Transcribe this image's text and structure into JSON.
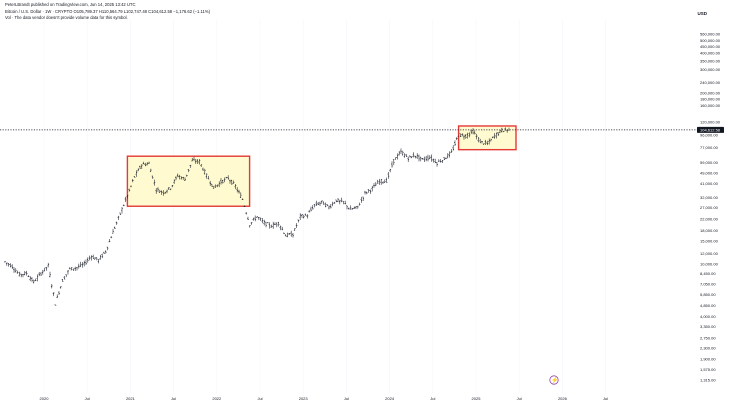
{
  "header": {
    "published_by": "PeterLBrandt published on TradingView.com, Jun 14, 2025 13:42 UTC",
    "symbol_line": "Bitcoin / U.S. Dollar · 1W · CRYPTO  O105,789.37  H110,564.79  L102,747.48  C104,612.58  −1,176.62 (−1.11%)",
    "volume_note": "Vol · The data vendor doesn't provide volume data for this symbol."
  },
  "currency": "USD",
  "current_price_label": "104,612.58",
  "chart_data": {
    "type": "bar",
    "scale": "log",
    "series": [
      {
        "values": [
          [
            "2019-08",
            10400
          ],
          [
            "2019-09",
            9600
          ],
          [
            "2019-10",
            8300
          ],
          [
            "2019-11",
            8500
          ],
          [
            "2019-12",
            7300
          ],
          [
            "2020-01",
            8500
          ],
          [
            "2020-02",
            9700
          ],
          [
            "2020-03",
            5000
          ],
          [
            "2020-04",
            7500
          ],
          [
            "2020-05",
            9200
          ],
          [
            "2020-06",
            9400
          ],
          [
            "2020-07",
            10000
          ],
          [
            "2020-08",
            11500
          ],
          [
            "2020-09",
            10700
          ],
          [
            "2020-10",
            12500
          ],
          [
            "2020-11",
            17500
          ],
          [
            "2020-12",
            24000
          ],
          [
            "2021-01",
            33000
          ],
          [
            "2021-02",
            46000
          ],
          [
            "2021-03",
            57000
          ],
          [
            "2021-04",
            58000
          ],
          [
            "2021-05",
            37000
          ],
          [
            "2021-06",
            35000
          ],
          [
            "2021-07",
            38000
          ],
          [
            "2021-08",
            47000
          ],
          [
            "2021-09",
            44000
          ],
          [
            "2021-10",
            61000
          ],
          [
            "2021-11",
            60000
          ],
          [
            "2021-12",
            47000
          ],
          [
            "2022-01",
            38000
          ],
          [
            "2022-02",
            42000
          ],
          [
            "2022-03",
            45000
          ],
          [
            "2022-04",
            39000
          ],
          [
            "2022-05",
            31000
          ],
          [
            "2022-06",
            20000
          ],
          [
            "2022-07",
            23000
          ],
          [
            "2022-08",
            20500
          ],
          [
            "2022-09",
            19500
          ],
          [
            "2022-10",
            20500
          ],
          [
            "2022-11",
            16500
          ],
          [
            "2022-12",
            16800
          ],
          [
            "2023-01",
            23000
          ],
          [
            "2023-02",
            23500
          ],
          [
            "2023-03",
            28000
          ],
          [
            "2023-04",
            29500
          ],
          [
            "2023-05",
            27000
          ],
          [
            "2023-06",
            30500
          ],
          [
            "2023-07",
            29500
          ],
          [
            "2023-08",
            26000
          ],
          [
            "2023-09",
            27000
          ],
          [
            "2023-10",
            34500
          ],
          [
            "2023-11",
            37500
          ],
          [
            "2023-12",
            42500
          ],
          [
            "2024-01",
            43000
          ],
          [
            "2024-02",
            61000
          ],
          [
            "2024-03",
            71000
          ],
          [
            "2024-04",
            64000
          ],
          [
            "2024-05",
            67000
          ],
          [
            "2024-06",
            62000
          ],
          [
            "2024-07",
            65000
          ],
          [
            "2024-08",
            59000
          ],
          [
            "2024-09",
            63000
          ],
          [
            "2024-10",
            70000
          ],
          [
            "2024-11",
            96000
          ],
          [
            "2024-12",
            94000
          ],
          [
            "2025-01",
            102000
          ],
          [
            "2025-02",
            85000
          ],
          [
            "2025-03",
            82000
          ],
          [
            "2025-04",
            94000
          ],
          [
            "2025-05",
            104000
          ],
          [
            "2025-06",
            104612
          ]
        ]
      }
    ],
    "y_ticks": [
      "560,000.00",
      "500,000.00",
      "450,000.00",
      "400,000.00",
      "350,000.00",
      "300,000.00",
      "240,000.00",
      "200,000.00",
      "180,000.00",
      "160,000.00",
      "120,000.00",
      "96,000.00",
      "77,000.00",
      "59,000.00",
      "49,000.00",
      "41,000.00",
      "32,000.00",
      "27,000.00",
      "22,000.00",
      "18,000.00",
      "15,000.00",
      "12,000.00",
      "10,000.00",
      "8,450.00",
      "7,050.00",
      "5,850.00",
      "4,850.00",
      "4,000.00",
      "3,350.00",
      "2,750.00",
      "2,300.00",
      "1,900.00",
      "1,575.00",
      "1,315.00"
    ],
    "x_ticks": [
      "2020",
      "Jul",
      "2021",
      "Jul",
      "2022",
      "Jul",
      "2023",
      "Jul",
      "2024",
      "Jul",
      "2025",
      "Jul",
      "2026",
      "Jul"
    ],
    "annotations": [
      {
        "type": "rectangle",
        "from": "2021-01",
        "to": "2022-05",
        "low": 27500,
        "high": 66000
      },
      {
        "type": "rectangle",
        "from": "2024-11",
        "to": "2025-06",
        "low": 74000,
        "high": 112000
      }
    ],
    "grid": true
  },
  "colors": {
    "bars": "#131722",
    "box_border": "#e53935",
    "box_fill": "#fff9c4",
    "background": "#ffffff"
  }
}
